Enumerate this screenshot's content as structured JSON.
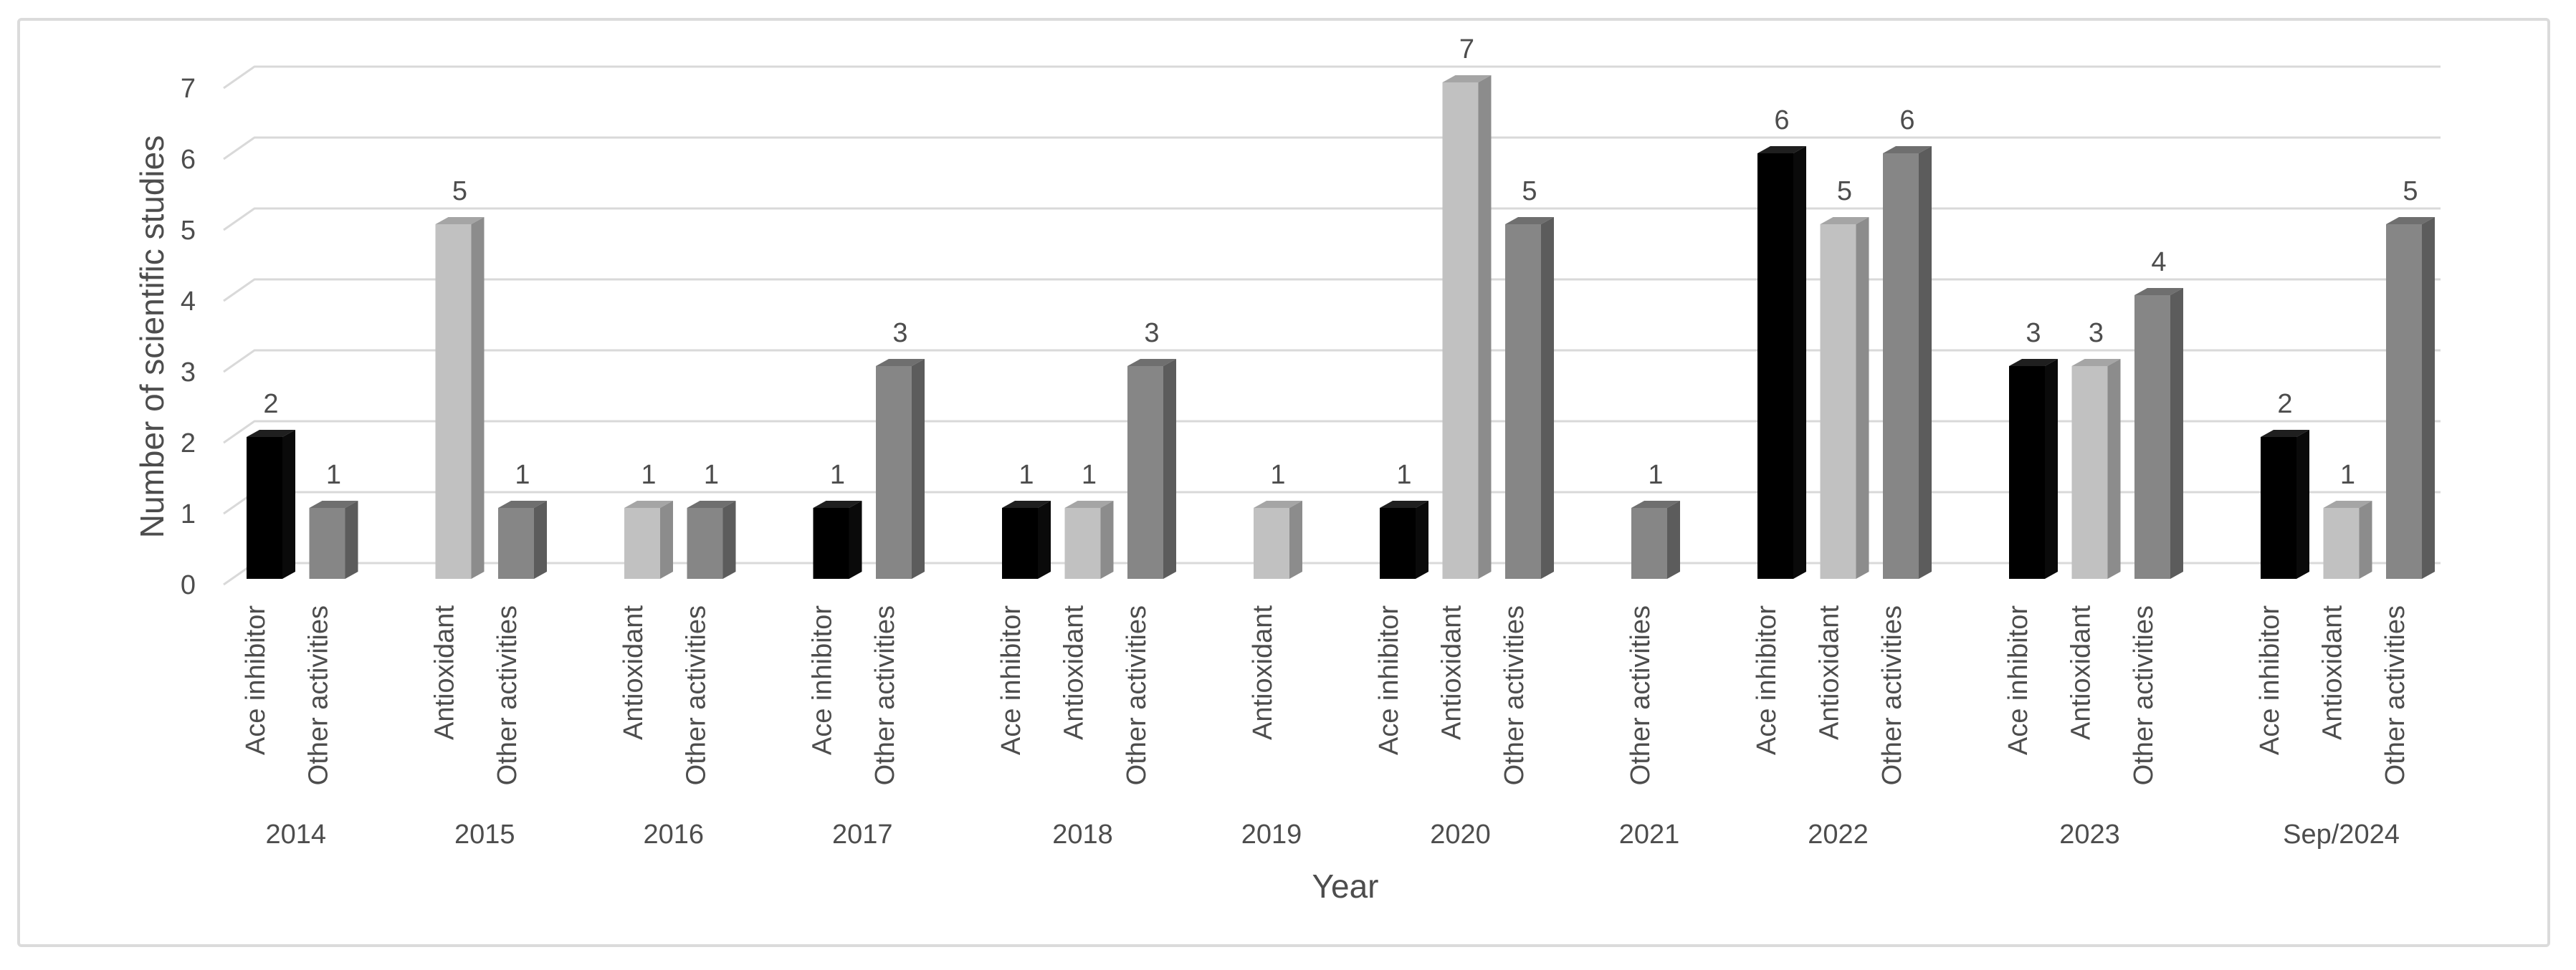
{
  "frame": {
    "background": "#ffffff",
    "border_color": "#dbdbdb"
  },
  "chart_data": {
    "type": "bar",
    "variant": "3d-column-grouped",
    "title": "",
    "xlabel": "Year",
    "ylabel": "Number of scientific studies",
    "ylim": [
      0,
      7
    ],
    "yticks": [
      0,
      1,
      2,
      3,
      4,
      5,
      6,
      7
    ],
    "grid": true,
    "legend": "none",
    "data_labels": true,
    "colors": {
      "text": "#4d4d4d",
      "gridline": "#d9d9d9",
      "background": "#ffffff"
    },
    "palette": {
      "Ace inhibitor": {
        "front": "#000000",
        "top": "#1f1f1f",
        "side": "#0a0a0a"
      },
      "Antioxidant": {
        "front": "#c1c1c1",
        "top": "#a5a5a5",
        "side": "#8c8c8c"
      },
      "Other activities": {
        "front": "#868686",
        "top": "#6f6f6f",
        "side": "#5c5c5c"
      }
    },
    "groups": [
      {
        "year": "2014",
        "bars": [
          {
            "label": "Ace inhibitor",
            "value": 2
          },
          {
            "label": "Other activities",
            "value": 1
          }
        ]
      },
      {
        "year": "2015",
        "bars": [
          {
            "label": "Antioxidant",
            "value": 5
          },
          {
            "label": "Other activities",
            "value": 1
          }
        ]
      },
      {
        "year": "2016",
        "bars": [
          {
            "label": "Antioxidant",
            "value": 1
          },
          {
            "label": "Other activities",
            "value": 1
          }
        ]
      },
      {
        "year": "2017",
        "bars": [
          {
            "label": "Ace inhibitor",
            "value": 1
          },
          {
            "label": "Other activities",
            "value": 3
          }
        ]
      },
      {
        "year": "2018",
        "bars": [
          {
            "label": "Ace inhibitor",
            "value": 1
          },
          {
            "label": "Antioxidant",
            "value": 1
          },
          {
            "label": "Other activities",
            "value": 3
          }
        ]
      },
      {
        "year": "2019",
        "bars": [
          {
            "label": "Antioxidant",
            "value": 1
          }
        ]
      },
      {
        "year": "2020",
        "bars": [
          {
            "label": "Ace inhibitor",
            "value": 1
          },
          {
            "label": "Antioxidant",
            "value": 7
          },
          {
            "label": "Other activities",
            "value": 5
          }
        ]
      },
      {
        "year": "2021",
        "bars": [
          {
            "label": "Other activities",
            "value": 1
          }
        ]
      },
      {
        "year": "2022",
        "bars": [
          {
            "label": "Ace inhibitor",
            "value": 6
          },
          {
            "label": "Antioxidant",
            "value": 5
          },
          {
            "label": "Other activities",
            "value": 6
          }
        ]
      },
      {
        "year": "2023",
        "bars": [
          {
            "label": "Ace inhibitor",
            "value": 3
          },
          {
            "label": "Antioxidant",
            "value": 3
          },
          {
            "label": "Other activities",
            "value": 4
          }
        ]
      },
      {
        "year": "Sep/2024",
        "bars": [
          {
            "label": "Ace inhibitor",
            "value": 2
          },
          {
            "label": "Antioxidant",
            "value": 1
          },
          {
            "label": "Other activities",
            "value": 5
          }
        ]
      }
    ]
  }
}
